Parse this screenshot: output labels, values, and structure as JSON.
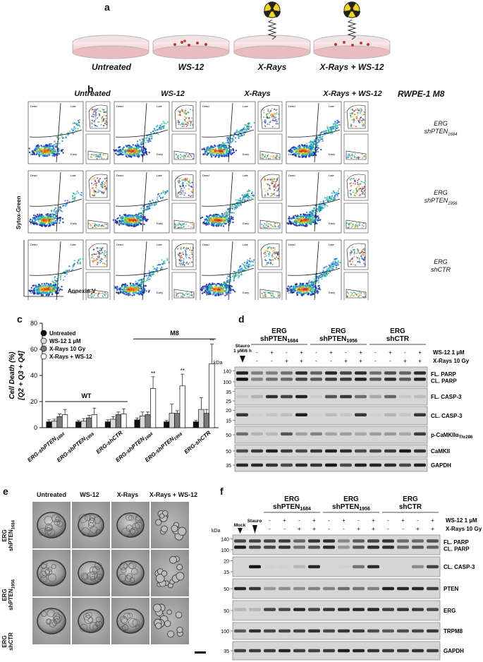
{
  "panel_labels": {
    "a": "a",
    "b": "b",
    "c": "c",
    "d": "d",
    "e": "e",
    "f": "f"
  },
  "panel_a": {
    "conditions": [
      "Untreated",
      "WS-12",
      "X-Rays",
      "X-Rays + WS-12"
    ]
  },
  "panel_b": {
    "columns": [
      "Untreated",
      "WS-12",
      "X-Rays",
      "X-Rays + WS-12"
    ],
    "cell_line": "RWPE-1 M8",
    "rows": [
      {
        "label1": "ERG",
        "label2": "shPTEN",
        "sub": "1684"
      },
      {
        "label1": "ERG",
        "label2": "shPTEN",
        "sub": "1956"
      },
      {
        "label1": "ERG",
        "label2": "shCTR",
        "sub": ""
      }
    ],
    "y_axis": "Sytox-Green",
    "x_axis": "Annexin-V",
    "quadrants": {
      "q1": "Dead",
      "q2": "Late",
      "q3": "Early",
      "q4": "Live"
    }
  },
  "chart_data": {
    "type": "bar",
    "ylabel": "Cell Death (%)",
    "ylabel2": "[Q2 + Q3 + Q4]",
    "ylim": [
      0,
      80
    ],
    "yticks": [
      0,
      20,
      40,
      60,
      80
    ],
    "categories": [
      "ERG-shPTEN1684",
      "ERG-shPTEN1956",
      "ERG-shCTR",
      "ERG-shPTEN1684",
      "ERG-shPTEN1956",
      "ERG-shCTR"
    ],
    "category_labels": [
      {
        "main": "ERG-shPTEN",
        "sub": "1684"
      },
      {
        "main": "ERG-shPTEN",
        "sub": "1956"
      },
      {
        "main": "ERG-shCTR",
        "sub": ""
      },
      {
        "main": "ERG-shPTEN",
        "sub": "1684"
      },
      {
        "main": "ERG-shPTEN",
        "sub": "1956"
      },
      {
        "main": "ERG-shCTR",
        "sub": ""
      }
    ],
    "groups": [
      {
        "label": "WT",
        "from": 0,
        "to": 2
      },
      {
        "label": "M8",
        "from": 3,
        "to": 5
      }
    ],
    "series": [
      {
        "name": "Untreated",
        "color": "#111111",
        "values": [
          4.5,
          4.5,
          4.5,
          6,
          4.5,
          4.5
        ],
        "errors": [
          1.5,
          1,
          1.5,
          1.5,
          1,
          1
        ]
      },
      {
        "name": "WS-12 1 µM",
        "color": "#d9d9d9",
        "values": [
          5,
          5,
          6.5,
          9,
          11,
          14
        ],
        "errors": [
          1.5,
          2,
          2,
          3,
          7,
          9
        ]
      },
      {
        "name": "X-Rays 10 Gy",
        "color": "#7a7a7a",
        "values": [
          8.5,
          7.5,
          10,
          10,
          11,
          11
        ],
        "errors": [
          2,
          2,
          2,
          2,
          2,
          3
        ]
      },
      {
        "name": "X-Rays + WS-12",
        "color": "#ffffff",
        "values": [
          10,
          10,
          10.5,
          30,
          32,
          49
        ],
        "errors": [
          4,
          5,
          4,
          9,
          9,
          15
        ]
      }
    ],
    "annotations": [
      {
        "category": 3,
        "text": "**"
      },
      {
        "category": 4,
        "text": "**"
      },
      {
        "category": 5,
        "text": "**"
      }
    ]
  },
  "panel_d": {
    "groups": [
      {
        "line1": "ERG",
        "line2": "shPTEN",
        "sub": "1684"
      },
      {
        "line1": "ERG",
        "line2": "shPTEN",
        "sub": "1956"
      },
      {
        "line1": "ERG",
        "line2": "shCTR",
        "sub": ""
      }
    ],
    "control_label1": "Stauro",
    "control_label2": "1 µM/6 h",
    "kda_label": "kDa",
    "treatments": [
      {
        "name": "WS-12 1 µM",
        "marks": [
          "-",
          "+",
          "-",
          "+",
          "-",
          "+",
          "-",
          "+",
          "-",
          "+",
          "-",
          "+"
        ]
      },
      {
        "name": "X-Rays 10 Gy",
        "marks": [
          "-",
          "-",
          "+",
          "+",
          "-",
          "-",
          "+",
          "+",
          "-",
          "-",
          "+",
          "+"
        ]
      }
    ],
    "markers": [
      "140",
      "100",
      "35",
      "25",
      "20",
      "15",
      "50",
      "50",
      "35"
    ],
    "blots": [
      {
        "labels": [
          "FL. PARP",
          "CL. PARP"
        ],
        "kda": [
          "140",
          "100"
        ]
      },
      {
        "labels": [
          "FL. CASP-3"
        ],
        "kda": [
          "35",
          "25"
        ]
      },
      {
        "labels": [
          "CL. CASP-3"
        ],
        "kda": [
          "20",
          "15"
        ]
      },
      {
        "labels": [
          "p-CaMKIIα",
          "Thr286"
        ],
        "kda": [
          "50"
        ]
      },
      {
        "labels": [
          "CaMKII"
        ],
        "kda": [
          "50"
        ]
      },
      {
        "labels": [
          "GAPDH"
        ],
        "kda": [
          "35"
        ]
      }
    ]
  },
  "panel_e": {
    "columns": [
      "Untreated",
      "WS-12",
      "X-Rays",
      "X-Rays + WS-12"
    ],
    "rows": [
      {
        "l1": "ERG",
        "l2": "shPTEN",
        "sub": "1684"
      },
      {
        "l1": "ERG",
        "l2": "shPTEN",
        "sub": "1956"
      },
      {
        "l1": "ERG",
        "l2": "shCTR",
        "sub": ""
      }
    ]
  },
  "panel_f": {
    "groups": [
      {
        "line1": "ERG",
        "line2": "shPTEN",
        "sub": "1684"
      },
      {
        "line1": "ERG",
        "line2": "shPTEN",
        "sub": "1956"
      },
      {
        "line1": "ERG",
        "line2": "shCTR",
        "sub": ""
      }
    ],
    "mock": "Mock",
    "stauro": "Stauro",
    "kda_label": "kDa",
    "treatments": [
      {
        "name": "WS-12 1 µM",
        "marks": [
          "-",
          "+",
          "-",
          "+",
          "-",
          "+",
          "-",
          "+",
          "-",
          "+",
          "-",
          "+"
        ]
      },
      {
        "name": "X-Rays 10 Gy",
        "marks": [
          "-",
          "-",
          "+",
          "+",
          "-",
          "-",
          "+",
          "+",
          "-",
          "-",
          "+",
          "+"
        ]
      }
    ],
    "blots": [
      {
        "labels": [
          "FL. PARP",
          "CL. PARP"
        ],
        "kda": [
          "140",
          "100"
        ]
      },
      {
        "labels": [
          "CL. CASP-3"
        ],
        "kda": [
          "20",
          "15"
        ]
      },
      {
        "labels": [
          "PTEN"
        ],
        "kda": [
          "50"
        ]
      },
      {
        "labels": [
          "ERG"
        ],
        "kda": [
          "50"
        ]
      },
      {
        "labels": [
          "TRPM8"
        ],
        "kda": [
          "100"
        ]
      },
      {
        "labels": [
          "GAPDH"
        ],
        "kda": [
          "35"
        ]
      }
    ]
  }
}
